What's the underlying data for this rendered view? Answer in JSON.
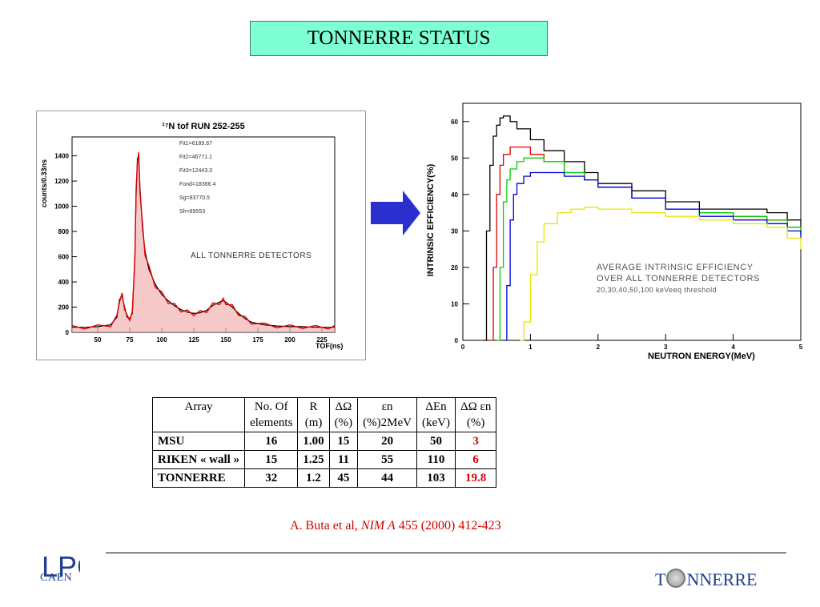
{
  "title": "TONNERRE STATUS",
  "tof_chart": {
    "title": "¹⁷N tof RUN 252-255",
    "ylabel": "counts/0.33ns",
    "xlabel": "TOF(ns)",
    "xticks": [
      "50",
      "75",
      "100",
      "125",
      "150",
      "175",
      "200",
      "225"
    ],
    "yticks": [
      "0",
      "200",
      "400",
      "600",
      "800",
      "1000",
      "1200",
      "1400"
    ],
    "fits": [
      "Fit1=6189.67",
      "Fit2=46771.1",
      "Fit3=12443.3",
      "Fond=18366.4",
      "Sg=83770.5",
      "Sh=89553"
    ],
    "annotation": "ALL TONNERRE DETECTORS",
    "colors": {
      "data": "#e00000",
      "fit": "#000000",
      "fill": "#f4b4b4"
    }
  },
  "eff_chart": {
    "ylabel": "INTRINSIC EFFICIENCY(%)",
    "xlabel": "NEUTRON ENERGY(MeV)",
    "xticks": [
      "0",
      "1",
      "2",
      "3",
      "4",
      "5"
    ],
    "yticks": [
      "0",
      "10",
      "20",
      "30",
      "40",
      "50",
      "60"
    ],
    "annotation_lines": [
      "AVERAGE INTRINSIC EFFICIENCY",
      "OVER ALL TONNERRE DETECTORS",
      "20,30,40,50,100 keVeeq threshold"
    ]
  },
  "chart_data": [
    {
      "type": "line",
      "title": "¹⁷N tof RUN 252-255",
      "xlabel": "TOF(ns)",
      "ylabel": "counts/0.33ns",
      "xlim": [
        30,
        235
      ],
      "ylim": [
        0,
        1550
      ],
      "series": [
        {
          "x": [
            30,
            40,
            50,
            60,
            65,
            67,
            69,
            71,
            73,
            75,
            77,
            79,
            80,
            81,
            82,
            83,
            85,
            87,
            90,
            95,
            100,
            105,
            110,
            115,
            120,
            125,
            130,
            135,
            140,
            145,
            148,
            150,
            155,
            160,
            165,
            170,
            180,
            190,
            200,
            210,
            220,
            230,
            235
          ],
          "y": [
            40,
            40,
            45,
            60,
            120,
            260,
            290,
            200,
            120,
            110,
            150,
            600,
            1100,
            1380,
            1390,
            1150,
            820,
            640,
            500,
            380,
            300,
            250,
            210,
            180,
            160,
            150,
            155,
            175,
            215,
            240,
            250,
            240,
            200,
            150,
            110,
            80,
            60,
            50,
            45,
            45,
            40,
            40,
            40
          ]
        }
      ]
    },
    {
      "type": "line",
      "ylabel": "INTRINSIC EFFICIENCY(%)",
      "xlabel": "NEUTRON ENERGY(MeV)",
      "xlim": [
        0,
        5
      ],
      "ylim": [
        0,
        65
      ],
      "series": [
        {
          "x": [
            0.3,
            0.35,
            0.4,
            0.45,
            0.5,
            0.55,
            0.6,
            0.7,
            0.8,
            1.0,
            1.2,
            1.5,
            1.8,
            2.0,
            2.5,
            3.0,
            3.5,
            4.0,
            4.5,
            4.8,
            5.0
          ],
          "y": [
            0,
            30,
            48,
            56,
            59,
            61,
            61.5,
            60,
            58,
            55,
            52,
            49,
            46,
            43,
            41,
            38,
            36,
            36,
            35,
            33,
            31
          ]
        },
        {
          "x": [
            0.4,
            0.45,
            0.5,
            0.55,
            0.6,
            0.7,
            0.8,
            1.0,
            1.2,
            1.5,
            1.8,
            2.0,
            2.5,
            3.0,
            3.5,
            4.0,
            4.5,
            4.8,
            5.0
          ],
          "y": [
            0,
            20,
            40,
            48,
            51,
            53,
            53,
            51,
            49,
            46,
            44,
            42,
            39,
            36,
            35,
            34,
            33,
            31,
            29
          ]
        },
        {
          "x": [
            0.5,
            0.55,
            0.6,
            0.65,
            0.7,
            0.8,
            0.9,
            1.0,
            1.2,
            1.5,
            1.8,
            2.0,
            2.5,
            3.0,
            3.5,
            4.0,
            4.5,
            4.8,
            5.0
          ],
          "y": [
            0,
            20,
            38,
            44,
            47,
            49,
            50,
            50,
            49,
            46,
            44,
            42,
            39,
            36,
            35,
            34,
            33,
            31,
            29
          ]
        },
        {
          "x": [
            0.6,
            0.65,
            0.7,
            0.75,
            0.8,
            0.9,
            1.0,
            1.2,
            1.5,
            1.8,
            2.0,
            2.5,
            3.0,
            3.5,
            4.0,
            4.5,
            4.8,
            5.0
          ],
          "y": [
            0,
            15,
            33,
            40,
            43,
            45,
            46,
            46,
            45,
            44,
            42,
            39,
            36,
            34,
            33,
            32,
            30,
            28
          ]
        },
        {
          "x": [
            0.85,
            0.9,
            1.0,
            1.1,
            1.2,
            1.4,
            1.6,
            1.8,
            2.0,
            2.5,
            3.0,
            3.5,
            4.0,
            4.5,
            4.8,
            5.0
          ],
          "y": [
            0,
            5,
            18,
            27,
            32,
            35,
            36,
            36.5,
            36,
            35,
            34,
            33,
            32,
            31,
            28,
            25
          ]
        }
      ],
      "colors": [
        "#000000",
        "#e00000",
        "#00d000",
        "#0000e0",
        "#e8e800"
      ]
    }
  ],
  "table": {
    "headers": [
      {
        "line1": "Array",
        "line2": ""
      },
      {
        "line1": "No. Of",
        "line2": "elements"
      },
      {
        "line1": "R",
        "line2": "(m)"
      },
      {
        "line1": "ΔΩ",
        "line2": "(%)"
      },
      {
        "line1": "εn",
        "line2": "(%)2MeV"
      },
      {
        "line1": "ΔEn",
        "line2": "(keV)"
      },
      {
        "line1": "ΔΩ εn",
        "line2": "(%)"
      }
    ],
    "rows": [
      [
        "MSU",
        "16",
        "1.00",
        "15",
        "20",
        "50",
        "3"
      ],
      [
        "RIKEN « wall »",
        "15",
        "1.25",
        "11",
        "55",
        "110",
        "6"
      ],
      [
        "TONNERRE",
        "32",
        "1.2",
        "45",
        "44",
        "103",
        "19.8"
      ]
    ]
  },
  "reference": {
    "authors": "A. Buta et al, ",
    "journal": "NIM A",
    "rest": " 455 (2000) 412-423"
  },
  "logo_lpc_text": "CAEN",
  "logo_lpc_mark": "LPC",
  "logo_tonnerre": {
    "pre": "T",
    "post": "NNERRE"
  }
}
